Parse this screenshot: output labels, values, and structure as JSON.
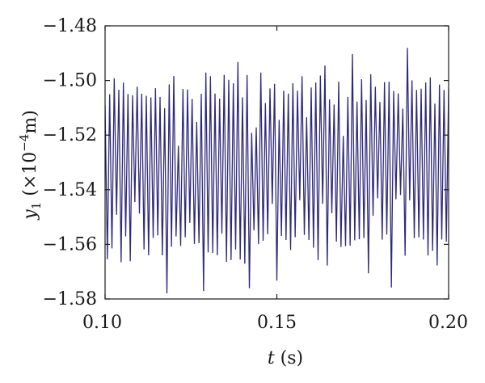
{
  "chart_data": {
    "type": "line",
    "xlabel": {
      "var": "t",
      "rest": " (s)"
    },
    "ylabel": {
      "var": "y",
      "sub": "1",
      "pre": " (×10",
      "sup": "−4",
      "post": "m)"
    },
    "xlim": [
      0.1,
      0.2
    ],
    "ylim": [
      -1.58,
      -1.48
    ],
    "xticks": [
      0.1,
      0.15,
      0.2
    ],
    "xtick_labels": [
      "0.10",
      "0.15",
      "0.20"
    ],
    "yticks": [
      -1.58,
      -1.56,
      -1.54,
      -1.52,
      -1.5,
      -1.48
    ],
    "ytick_labels": [
      "−1.58",
      "−1.56",
      "−1.54",
      "−1.52",
      "−1.50",
      "−1.48"
    ],
    "grid": false,
    "series": [
      {
        "color": "#2e2a7a",
        "signal": {
          "description": "fast oscillation about -1.532",
          "mean": -1.532,
          "samples": 150,
          "typical_max": -1.503,
          "typical_min": -1.562,
          "overall_max": -1.488,
          "overall_min": -1.578
        }
      }
    ]
  }
}
